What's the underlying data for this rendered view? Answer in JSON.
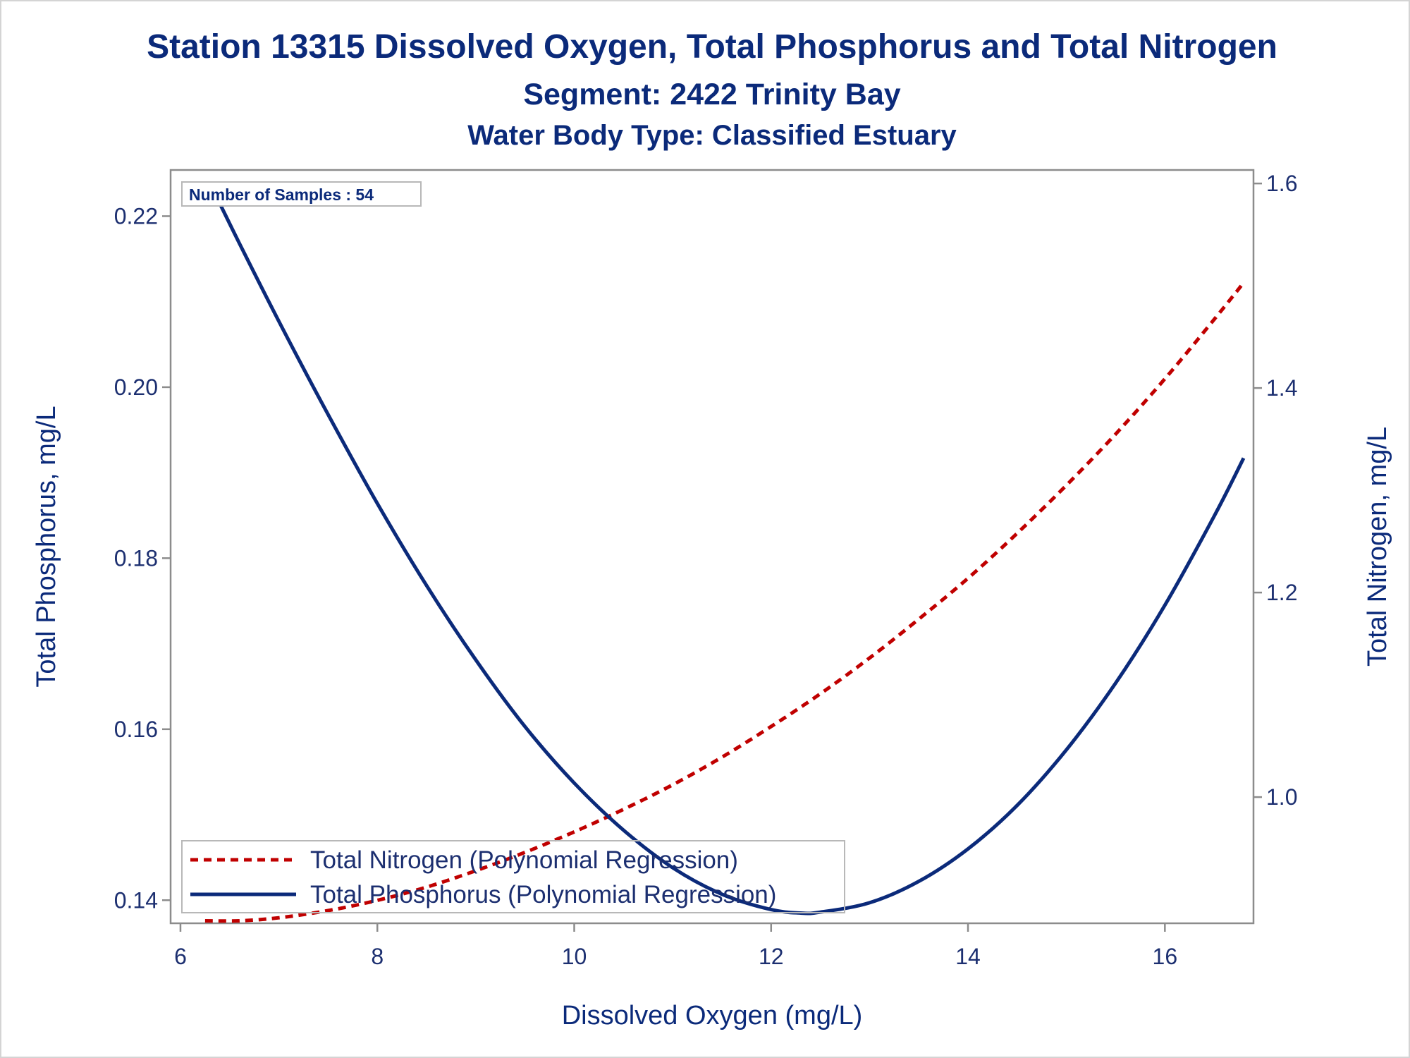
{
  "chart_data": {
    "type": "line",
    "title": "Station 13315  Dissolved Oxygen, Total Phosphorus and Total Nitrogen",
    "subtitle": "Segment: 2422  Trinity Bay",
    "subtitle2": "Water Body Type: Classified Estuary",
    "xlabel": "Dissolved Oxygen (mg/L)",
    "ylabel": "Total Phosphorus, mg/L",
    "y2label": "Total Nitrogen, mg/L",
    "xlim": [
      5.9,
      16.9
    ],
    "ylim": [
      0.1373,
      0.2254
    ],
    "y2lim": [
      0.8766,
      1.6132
    ],
    "x_ticks": [
      "6",
      "8",
      "10",
      "12",
      "14",
      "16"
    ],
    "y_ticks": [
      "0.14",
      "0.16",
      "0.18",
      "0.20",
      "0.22"
    ],
    "y2_ticks": [
      "1.0",
      "1.2",
      "1.4",
      "1.6"
    ],
    "grid": false,
    "legend_position": "bottom-left",
    "annotation": "Number of Samples : 54",
    "series": [
      {
        "name": "Total Nitrogen (Polynomial Regression)",
        "axis": "right",
        "style": "dashed",
        "color": "#c00000",
        "x": [
          6.25,
          6.6,
          7.0,
          7.5,
          8.0,
          8.5,
          9.0,
          9.5,
          10.0,
          10.5,
          11.0,
          11.5,
          12.0,
          12.5,
          13.0,
          13.5,
          14.0,
          14.5,
          15.0,
          15.5,
          16.0,
          16.5,
          16.8
        ],
        "values": [
          0.879,
          0.879,
          0.882,
          0.889,
          0.899,
          0.912,
          0.928,
          0.946,
          0.966,
          0.988,
          1.012,
          1.039,
          1.069,
          1.101,
          1.136,
          1.174,
          1.214,
          1.258,
          1.305,
          1.355,
          1.409,
          1.467,
          1.503
        ]
      },
      {
        "name": "Total Phosphorus (Polynomial Regression)",
        "axis": "left",
        "style": "solid",
        "color": "#0b2a7a",
        "x": [
          6.3,
          6.6,
          7.0,
          7.5,
          8.0,
          8.5,
          9.0,
          9.5,
          10.0,
          10.5,
          11.0,
          11.5,
          12.0,
          12.3,
          12.5,
          13.0,
          13.5,
          14.0,
          14.5,
          15.0,
          15.5,
          16.0,
          16.5,
          16.8
        ],
        "values": [
          0.2238,
          0.2168,
          0.2077,
          0.1968,
          0.1864,
          0.1768,
          0.1681,
          0.1603,
          0.1537,
          0.1482,
          0.1438,
          0.1407,
          0.1389,
          0.1385,
          0.1386,
          0.1397,
          0.1422,
          0.146,
          0.1511,
          0.1576,
          0.1654,
          0.1745,
          0.1849,
          0.1917
        ]
      }
    ]
  }
}
